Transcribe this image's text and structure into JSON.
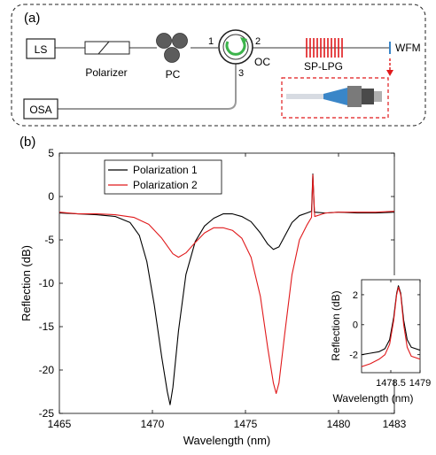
{
  "panel_a": {
    "label": "(a)",
    "ls": "LS",
    "polarizer": "Polarizer",
    "pc": "PC",
    "oc": "OC",
    "port1": "1",
    "port2": "2",
    "port3": "3",
    "sp_lpg": "SP-LPG",
    "wfm": "WFM",
    "osa": "OSA",
    "colors": {
      "accent_red": "#e0191b",
      "fiber": "#9a9a9a",
      "arrow_green": "#3cb44b",
      "cone_blue": "#3a86c8"
    }
  },
  "panel_b_label": "(b)",
  "chart_data": [
    {
      "type": "line",
      "xlabel": "Wavelength (nm)",
      "ylabel": "Reflection (dB)",
      "xlim": [
        1465,
        1483
      ],
      "ylim": [
        -25,
        5
      ],
      "xticks": [
        1465,
        1470,
        1475,
        1480,
        1483
      ],
      "yticks": [
        -25,
        -20,
        -15,
        -10,
        -5,
        0,
        5
      ],
      "legend_position": "top-left",
      "grid": false,
      "series": [
        {
          "name": "Polarization 1",
          "color": "#000000",
          "points": [
            [
              1465,
              -1.9
            ],
            [
              1466,
              -2.0
            ],
            [
              1467,
              -2.1
            ],
            [
              1468,
              -2.3
            ],
            [
              1468.8,
              -3.0
            ],
            [
              1469.3,
              -4.5
            ],
            [
              1469.7,
              -7.5
            ],
            [
              1470.1,
              -12.5
            ],
            [
              1470.5,
              -18.5
            ],
            [
              1470.8,
              -22.5
            ],
            [
              1470.95,
              -24.0
            ],
            [
              1471.1,
              -22.0
            ],
            [
              1471.4,
              -15.5
            ],
            [
              1471.8,
              -9.0
            ],
            [
              1472.3,
              -5.2
            ],
            [
              1472.8,
              -3.4
            ],
            [
              1473.3,
              -2.5
            ],
            [
              1473.8,
              -2.0
            ],
            [
              1474.3,
              -2.0
            ],
            [
              1474.8,
              -2.3
            ],
            [
              1475.3,
              -2.9
            ],
            [
              1475.8,
              -4.2
            ],
            [
              1476.2,
              -5.5
            ],
            [
              1476.5,
              -6.1
            ],
            [
              1476.8,
              -5.8
            ],
            [
              1477.1,
              -4.6
            ],
            [
              1477.5,
              -3.0
            ],
            [
              1477.9,
              -2.2
            ],
            [
              1478.3,
              -1.9
            ],
            [
              1478.55,
              -1.7
            ],
            [
              1478.62,
              2.6
            ],
            [
              1478.7,
              -1.8
            ],
            [
              1479.3,
              -1.9
            ],
            [
              1480,
              -1.8
            ],
            [
              1481,
              -1.9
            ],
            [
              1482,
              -1.9
            ],
            [
              1483,
              -1.8
            ]
          ]
        },
        {
          "name": "Polarization 2",
          "color": "#e0191b",
          "points": [
            [
              1465,
              -1.8
            ],
            [
              1466,
              -2.0
            ],
            [
              1467,
              -2.0
            ],
            [
              1468,
              -2.1
            ],
            [
              1469,
              -2.4
            ],
            [
              1469.8,
              -3.2
            ],
            [
              1470.5,
              -4.8
            ],
            [
              1471.1,
              -6.6
            ],
            [
              1471.4,
              -7.0
            ],
            [
              1471.8,
              -6.5
            ],
            [
              1472.3,
              -5.3
            ],
            [
              1472.8,
              -4.2
            ],
            [
              1473.3,
              -3.6
            ],
            [
              1473.8,
              -3.6
            ],
            [
              1474.3,
              -3.9
            ],
            [
              1474.8,
              -4.8
            ],
            [
              1475.3,
              -7.0
            ],
            [
              1475.8,
              -11.5
            ],
            [
              1476.2,
              -17.5
            ],
            [
              1476.5,
              -21.5
            ],
            [
              1476.65,
              -22.7
            ],
            [
              1476.8,
              -21.5
            ],
            [
              1477.1,
              -16.0
            ],
            [
              1477.5,
              -9.0
            ],
            [
              1477.9,
              -5.0
            ],
            [
              1478.3,
              -3.3
            ],
            [
              1478.55,
              -2.4
            ],
            [
              1478.62,
              2.5
            ],
            [
              1478.72,
              -2.3
            ],
            [
              1479.3,
              -1.9
            ],
            [
              1480,
              -1.8
            ],
            [
              1481,
              -1.8
            ],
            [
              1482,
              -1.8
            ],
            [
              1483,
              -1.7
            ]
          ]
        }
      ]
    },
    {
      "type": "line",
      "xlabel": "Wavelength (nm)",
      "ylabel": "Reflection (dB)",
      "xlim": [
        1478,
        1479
      ],
      "ylim": [
        -3.2,
        3
      ],
      "xticks": [
        1478.5,
        1479
      ],
      "yticks": [
        -2,
        0,
        2
      ],
      "series": [
        {
          "name": "Polarization 1",
          "color": "#000000",
          "points": [
            [
              1478.0,
              -2.0
            ],
            [
              1478.15,
              -1.9
            ],
            [
              1478.3,
              -1.8
            ],
            [
              1478.4,
              -1.6
            ],
            [
              1478.48,
              -1.0
            ],
            [
              1478.55,
              0.5
            ],
            [
              1478.6,
              2.1
            ],
            [
              1478.63,
              2.6
            ],
            [
              1478.67,
              2.1
            ],
            [
              1478.72,
              0.3
            ],
            [
              1478.78,
              -1.0
            ],
            [
              1478.85,
              -1.5
            ],
            [
              1479.0,
              -1.7
            ]
          ]
        },
        {
          "name": "Polarization 2",
          "color": "#e0191b",
          "points": [
            [
              1478.0,
              -2.8
            ],
            [
              1478.15,
              -2.6
            ],
            [
              1478.3,
              -2.3
            ],
            [
              1478.4,
              -2.0
            ],
            [
              1478.48,
              -1.3
            ],
            [
              1478.55,
              0.3
            ],
            [
              1478.6,
              2.0
            ],
            [
              1478.63,
              2.5
            ],
            [
              1478.67,
              2.0
            ],
            [
              1478.72,
              0.0
            ],
            [
              1478.78,
              -1.5
            ],
            [
              1478.85,
              -2.1
            ],
            [
              1479.0,
              -2.3
            ]
          ]
        }
      ]
    }
  ]
}
